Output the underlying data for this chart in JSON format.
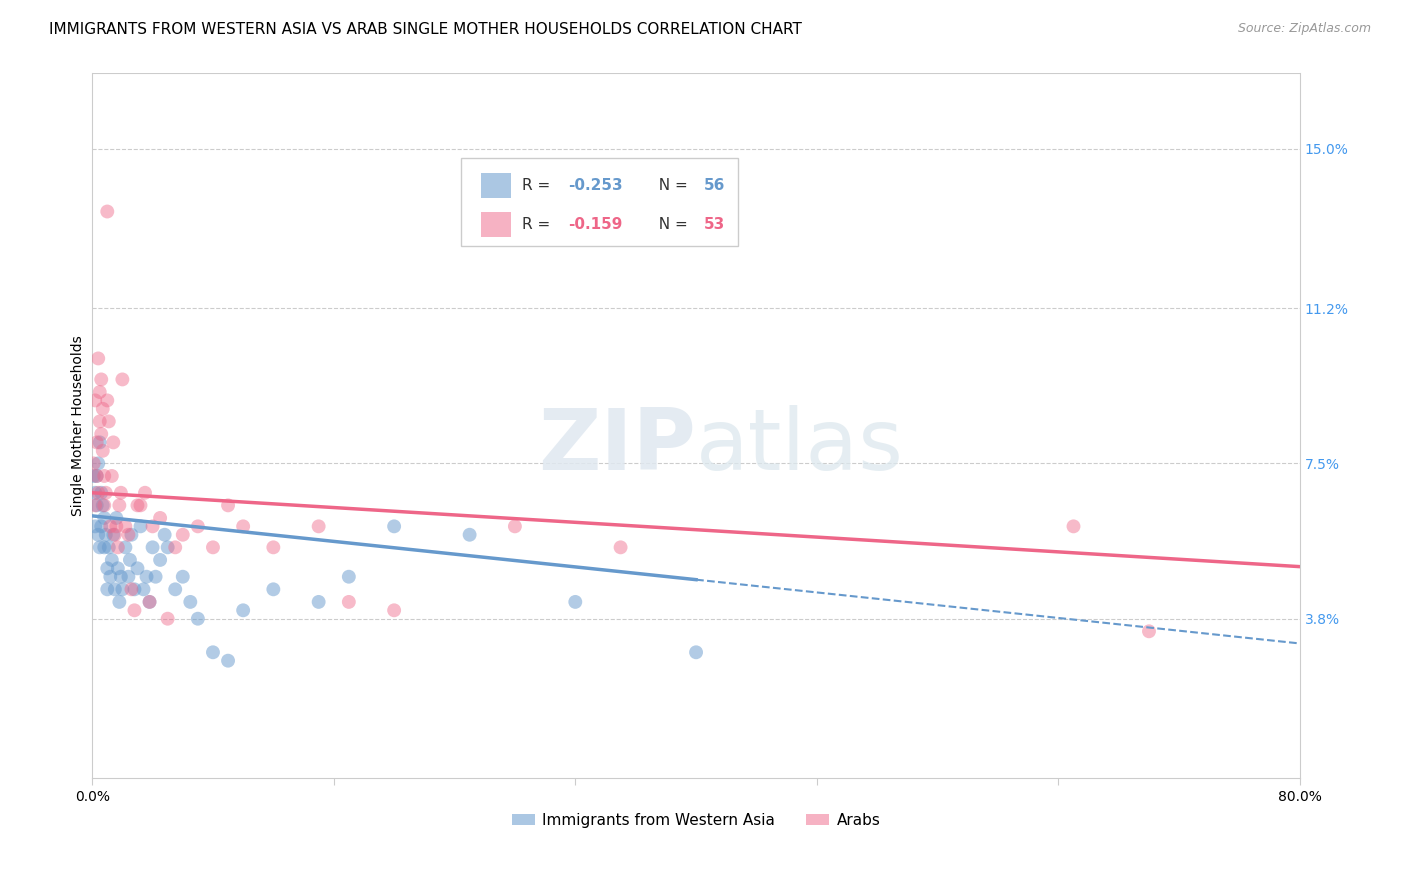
{
  "title": "IMMIGRANTS FROM WESTERN ASIA VS ARAB SINGLE MOTHER HOUSEHOLDS CORRELATION CHART",
  "source": "Source: ZipAtlas.com",
  "ylabel": "Single Mother Households",
  "legend_blue_label": "Immigrants from Western Asia",
  "legend_pink_label": "Arabs",
  "legend_blue_R": "-0.253",
  "legend_blue_N": "56",
  "legend_pink_R": "-0.159",
  "legend_pink_N": "53",
  "xmin": 0.0,
  "xmax": 0.8,
  "ymin": 0.0,
  "ymax": 0.168,
  "yticks": [
    0.038,
    0.075,
    0.112,
    0.15
  ],
  "ytick_labels": [
    "3.8%",
    "7.5%",
    "11.2%",
    "15.0%"
  ],
  "xticks": [
    0.0,
    0.16,
    0.32,
    0.48,
    0.64,
    0.8
  ],
  "xtick_labels": [
    "0.0%",
    "",
    "",
    "",
    "",
    "80.0%"
  ],
  "grid_color": "#cccccc",
  "background_color": "#ffffff",
  "watermark_zip": "ZIP",
  "watermark_atlas": "atlas",
  "blue_color": "#6699cc",
  "pink_color": "#ee6688",
  "blue_scatter": [
    [
      0.001,
      0.072
    ],
    [
      0.002,
      0.068
    ],
    [
      0.002,
      0.06
    ],
    [
      0.003,
      0.065
    ],
    [
      0.003,
      0.072
    ],
    [
      0.004,
      0.058
    ],
    [
      0.004,
      0.075
    ],
    [
      0.005,
      0.08
    ],
    [
      0.005,
      0.055
    ],
    [
      0.006,
      0.06
    ],
    [
      0.006,
      0.068
    ],
    [
      0.007,
      0.065
    ],
    [
      0.008,
      0.062
    ],
    [
      0.008,
      0.055
    ],
    [
      0.009,
      0.058
    ],
    [
      0.01,
      0.05
    ],
    [
      0.01,
      0.045
    ],
    [
      0.011,
      0.055
    ],
    [
      0.012,
      0.048
    ],
    [
      0.013,
      0.052
    ],
    [
      0.014,
      0.058
    ],
    [
      0.015,
      0.045
    ],
    [
      0.016,
      0.062
    ],
    [
      0.017,
      0.05
    ],
    [
      0.018,
      0.042
    ],
    [
      0.019,
      0.048
    ],
    [
      0.02,
      0.045
    ],
    [
      0.022,
      0.055
    ],
    [
      0.024,
      0.048
    ],
    [
      0.025,
      0.052
    ],
    [
      0.026,
      0.058
    ],
    [
      0.028,
      0.045
    ],
    [
      0.03,
      0.05
    ],
    [
      0.032,
      0.06
    ],
    [
      0.034,
      0.045
    ],
    [
      0.036,
      0.048
    ],
    [
      0.038,
      0.042
    ],
    [
      0.04,
      0.055
    ],
    [
      0.042,
      0.048
    ],
    [
      0.045,
      0.052
    ],
    [
      0.048,
      0.058
    ],
    [
      0.05,
      0.055
    ],
    [
      0.055,
      0.045
    ],
    [
      0.06,
      0.048
    ],
    [
      0.065,
      0.042
    ],
    [
      0.07,
      0.038
    ],
    [
      0.08,
      0.03
    ],
    [
      0.09,
      0.028
    ],
    [
      0.1,
      0.04
    ],
    [
      0.12,
      0.045
    ],
    [
      0.15,
      0.042
    ],
    [
      0.17,
      0.048
    ],
    [
      0.2,
      0.06
    ],
    [
      0.25,
      0.058
    ],
    [
      0.32,
      0.042
    ],
    [
      0.4,
      0.03
    ]
  ],
  "pink_scatter": [
    [
      0.001,
      0.075
    ],
    [
      0.002,
      0.09
    ],
    [
      0.002,
      0.065
    ],
    [
      0.003,
      0.08
    ],
    [
      0.003,
      0.072
    ],
    [
      0.004,
      0.068
    ],
    [
      0.004,
      0.1
    ],
    [
      0.005,
      0.085
    ],
    [
      0.005,
      0.092
    ],
    [
      0.006,
      0.095
    ],
    [
      0.006,
      0.082
    ],
    [
      0.007,
      0.088
    ],
    [
      0.007,
      0.078
    ],
    [
      0.008,
      0.072
    ],
    [
      0.008,
      0.065
    ],
    [
      0.009,
      0.068
    ],
    [
      0.01,
      0.135
    ],
    [
      0.01,
      0.09
    ],
    [
      0.011,
      0.085
    ],
    [
      0.012,
      0.06
    ],
    [
      0.013,
      0.072
    ],
    [
      0.014,
      0.08
    ],
    [
      0.015,
      0.058
    ],
    [
      0.016,
      0.06
    ],
    [
      0.017,
      0.055
    ],
    [
      0.018,
      0.065
    ],
    [
      0.019,
      0.068
    ],
    [
      0.02,
      0.095
    ],
    [
      0.022,
      0.06
    ],
    [
      0.024,
      0.058
    ],
    [
      0.026,
      0.045
    ],
    [
      0.028,
      0.04
    ],
    [
      0.03,
      0.065
    ],
    [
      0.032,
      0.065
    ],
    [
      0.035,
      0.068
    ],
    [
      0.038,
      0.042
    ],
    [
      0.04,
      0.06
    ],
    [
      0.045,
      0.062
    ],
    [
      0.05,
      0.038
    ],
    [
      0.055,
      0.055
    ],
    [
      0.06,
      0.058
    ],
    [
      0.07,
      0.06
    ],
    [
      0.08,
      0.055
    ],
    [
      0.09,
      0.065
    ],
    [
      0.1,
      0.06
    ],
    [
      0.12,
      0.055
    ],
    [
      0.15,
      0.06
    ],
    [
      0.17,
      0.042
    ],
    [
      0.2,
      0.04
    ],
    [
      0.28,
      0.06
    ],
    [
      0.35,
      0.055
    ],
    [
      0.65,
      0.06
    ],
    [
      0.7,
      0.035
    ]
  ],
  "title_fontsize": 11,
  "axis_label_fontsize": 10,
  "tick_fontsize": 10,
  "source_fontsize": 9,
  "right_tick_color": "#4499ee",
  "marker_size": 100,
  "blue_line_intercept": 0.0625,
  "blue_line_slope": -0.038,
  "pink_line_intercept": 0.068,
  "pink_line_slope": -0.022
}
